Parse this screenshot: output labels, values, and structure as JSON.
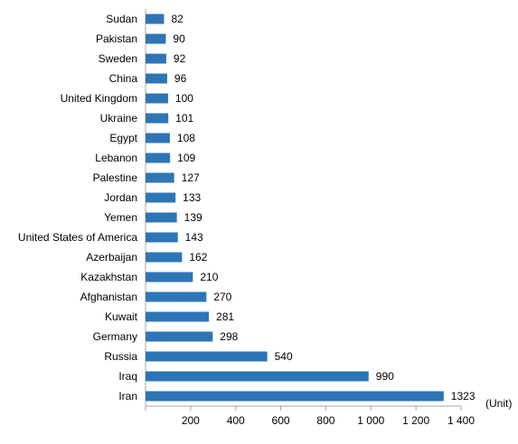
{
  "chart_data": {
    "type": "bar",
    "orientation": "horizontal",
    "categories": [
      "Sudan",
      "Pakistan",
      "Sweden",
      "China",
      "United Kingdom",
      "Ukraine",
      "Egypt",
      "Lebanon",
      "Palestine",
      "Jordan",
      "Yemen",
      "United States of America",
      "Azerbaijan",
      "Kazakhstan",
      "Afghanistan",
      "Kuwait",
      "Germany",
      "Russia",
      "Iraq",
      "Iran"
    ],
    "values": [
      82,
      90,
      92,
      96,
      100,
      101,
      108,
      109,
      127,
      133,
      139,
      143,
      162,
      210,
      270,
      281,
      298,
      540,
      990,
      1323
    ],
    "value_labels": [
      "82",
      "90",
      "92",
      "96",
      "100",
      "101",
      "108",
      "109",
      "127",
      "133",
      "139",
      "143",
      "162",
      "210",
      "270",
      "281",
      "298",
      "540",
      "990",
      "1323"
    ],
    "x_ticks": [
      0,
      200,
      400,
      600,
      800,
      1000,
      1200,
      1400
    ],
    "x_tick_labels": [
      "",
      "200",
      "400",
      "600",
      "800",
      "1 000",
      "1 200",
      "1 400"
    ],
    "unit_label": "(Unit)",
    "xlim": [
      0,
      1400
    ],
    "grid": false,
    "bar_color": "#2E75B6"
  }
}
